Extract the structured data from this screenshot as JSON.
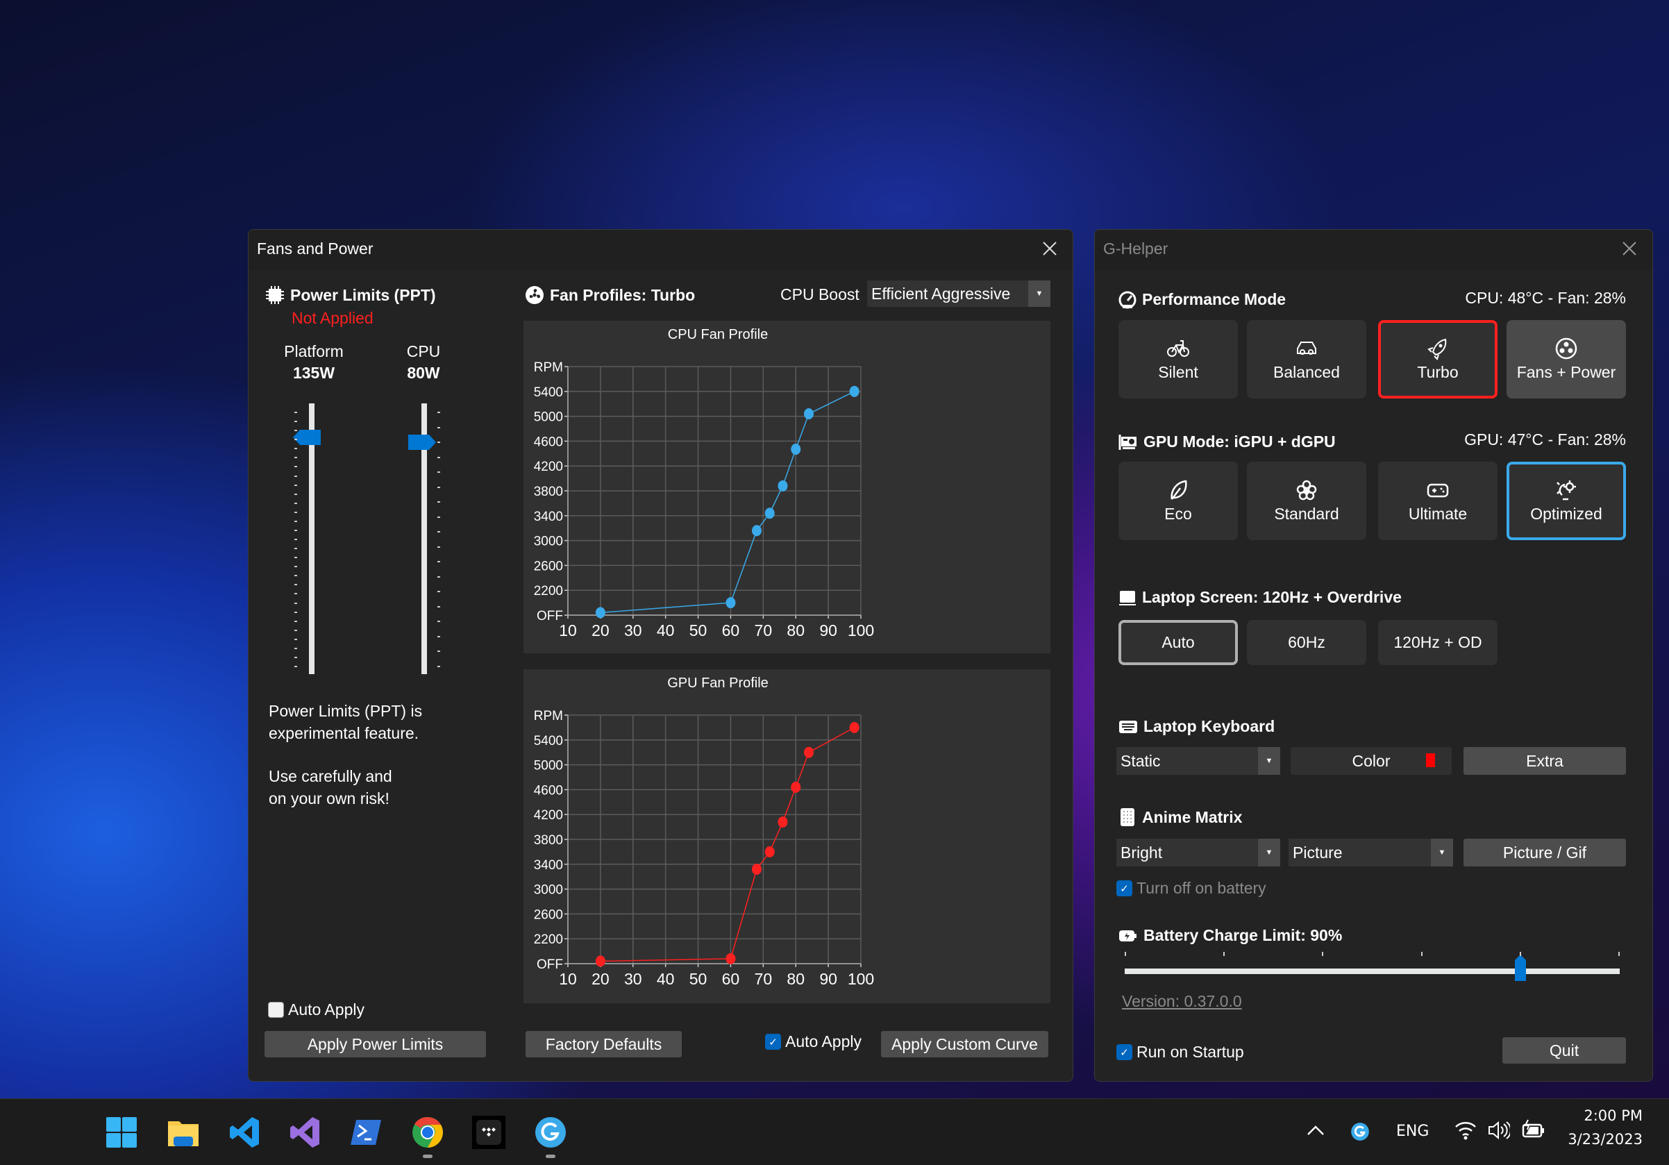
{
  "fans_window": {
    "title": "Fans and Power",
    "power": {
      "heading": "Power Limits (PPT)",
      "status": "Not Applied",
      "status_color": "#ff2020",
      "platform": {
        "label": "Platform",
        "value": "135W",
        "level": 0.9
      },
      "cpu": {
        "label": "CPU",
        "value": "80W",
        "level": 0.88
      },
      "note_line1": "Power Limits (PPT) is",
      "note_line2": "experimental feature.",
      "note_line3": "Use carefully and",
      "note_line4": "on your own risk!",
      "auto_apply": {
        "label": "Auto Apply",
        "checked": false
      },
      "apply_button": "Apply Power Limits"
    },
    "fans": {
      "heading": "Fan Profiles: Turbo",
      "cpu_boost_label": "CPU Boost",
      "cpu_boost_value": "Efficient Aggressive",
      "factory_defaults": "Factory Defaults",
      "auto_apply": {
        "label": "Auto Apply",
        "checked": true
      },
      "apply_curve": "Apply Custom Curve"
    }
  },
  "chart_data": [
    {
      "type": "line",
      "title": "CPU Fan Profile",
      "color": "#3aaaea",
      "grid": true,
      "x_ticks": [
        "10",
        "20",
        "30",
        "40",
        "50",
        "60",
        "70",
        "80",
        "90",
        "100"
      ],
      "xlim": [
        10,
        100
      ],
      "y_ticks": [
        "OFF",
        "2200",
        "2600",
        "3000",
        "3400",
        "3800",
        "4200",
        "4600",
        "5000",
        "5400",
        "RPM"
      ],
      "ylim": [
        1800,
        5800
      ],
      "x": [
        20,
        60,
        68,
        72,
        76,
        80,
        84,
        98
      ],
      "y": [
        1840,
        2000,
        3160,
        3440,
        3880,
        4470,
        5040,
        5400
      ]
    },
    {
      "type": "line",
      "title": "GPU Fan Profile",
      "color": "#ff2020",
      "grid": true,
      "x_ticks": [
        "10",
        "20",
        "30",
        "40",
        "50",
        "60",
        "70",
        "80",
        "90",
        "100"
      ],
      "xlim": [
        10,
        100
      ],
      "y_ticks": [
        "OFF",
        "2200",
        "2600",
        "3000",
        "3400",
        "3800",
        "4200",
        "4600",
        "5000",
        "5400",
        "RPM"
      ],
      "ylim": [
        1800,
        5800
      ],
      "x": [
        20,
        60,
        68,
        72,
        76,
        80,
        84,
        98
      ],
      "y": [
        1840,
        1880,
        3320,
        3600,
        4080,
        4640,
        5200,
        5600
      ]
    }
  ],
  "ghelper": {
    "title": "G-Helper",
    "performance": {
      "heading": "Performance Mode",
      "stats": "CPU: 48°C -  Fan: 28%",
      "modes": [
        {
          "label": "Silent",
          "icon": "bicycle-icon"
        },
        {
          "label": "Balanced",
          "icon": "car-icon"
        },
        {
          "label": "Turbo",
          "icon": "rocket-icon"
        },
        {
          "label": "Fans + Power",
          "icon": "fan-icon"
        }
      ],
      "selected": "Turbo",
      "selected_color": "#ff2020"
    },
    "gpu": {
      "heading": "GPU Mode: iGPU + dGPU",
      "stats": "GPU: 47°C -  Fan: 28%",
      "modes": [
        {
          "label": "Eco",
          "icon": "leaf-icon"
        },
        {
          "label": "Standard",
          "icon": "flower-icon"
        },
        {
          "label": "Ultimate",
          "icon": "gamepad-icon"
        },
        {
          "label": "Optimized",
          "icon": "lightbulb-gear-icon"
        }
      ],
      "selected": "Optimized",
      "selected_color": "#3aaaea"
    },
    "screen": {
      "heading": "Laptop Screen: 120Hz + Overdrive",
      "options": [
        "Auto",
        "60Hz",
        "120Hz + OD"
      ],
      "selected": "Auto"
    },
    "keyboard": {
      "heading": "Laptop Keyboard",
      "mode": "Static",
      "color_label": "Color",
      "color": "#ff0000",
      "extra": "Extra"
    },
    "anime": {
      "heading": "Anime Matrix",
      "brightness": "Bright",
      "mode": "Picture",
      "picture_button": "Picture / Gif",
      "turn_off_battery": {
        "label": "Turn off on battery",
        "checked": true
      }
    },
    "battery": {
      "heading": "Battery Charge Limit: 90%",
      "value": 90,
      "min": 50,
      "max": 100
    },
    "version": "Version: 0.37.0.0",
    "run_on_startup": {
      "label": "Run on Startup",
      "checked": true
    },
    "quit": "Quit"
  },
  "taskbar": {
    "apps": [
      "start-icon",
      "file-explorer-icon",
      "vscode-icon",
      "visual-studio-icon",
      "powershell-icon",
      "chrome-icon",
      "tidal-icon",
      "g-helper-icon"
    ],
    "tray": {
      "language": "ENG",
      "time": "2:00 PM",
      "date": "3/23/2023"
    }
  }
}
